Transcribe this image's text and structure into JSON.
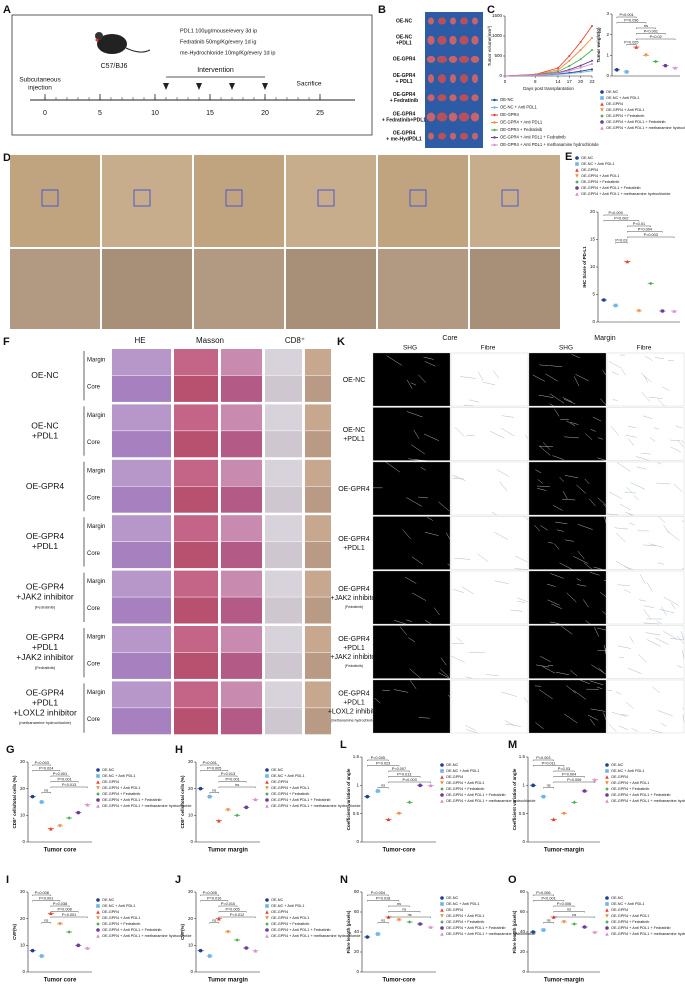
{
  "panel_letters": [
    "A",
    "B",
    "C",
    "D",
    "E",
    "F",
    "K",
    "G",
    "H",
    "L",
    "M",
    "I",
    "J",
    "N",
    "O"
  ],
  "timeline": {
    "mouse": "C57/BJ6",
    "dosing": [
      "PDL1 100μg/mouse/every 3d   ip",
      "Fedratinib 50mg/Kg/every 1d   ig",
      "me-Hydrochloride 10mg/Kg/every 1d   ip"
    ],
    "intervention": "Intervention",
    "start": [
      "Subcutaneous",
      "injection"
    ],
    "end": "Sacrifice",
    "day_ticks": [
      0,
      5,
      10,
      15,
      20,
      25
    ]
  },
  "tumor_rows": [
    [
      "OE-NC"
    ],
    [
      "OE-NC",
      "+PDL1"
    ],
    [
      "OE-GPR4"
    ],
    [
      "OE-GPR4",
      "+ PDL1"
    ],
    [
      "OE-GPR4",
      "+ Fedratinib"
    ],
    [
      "OE-GPR4",
      "+ Fedratinib+PDL1"
    ],
    [
      "OE-GPR4",
      "+ me-HydPDL1"
    ]
  ],
  "groups": {
    "names": [
      "OE-NC",
      "OE-NC + Anti PDL1",
      "OE-GPR4",
      "OE-GPR4 + Anti PDL1",
      "OE-GPR4 + Fedratinib",
      "OE-GPR4 + Anti PDL1 + Fedratinib",
      "OE-GPR4 + Anti PDL1 + methanamine hydrochloride"
    ],
    "colors": [
      "#1f3f8f",
      "#6fb6e6",
      "#e8402f",
      "#f08a3c",
      "#4caf50",
      "#6a3d9a",
      "#d98ccc"
    ]
  },
  "line_chart": {
    "type": "line",
    "y_label": "Tumor volume(mm³)",
    "x_label": "Days post transplantation",
    "x": [
      0,
      8,
      14,
      17,
      20,
      23
    ],
    "xlim": [
      0,
      23
    ],
    "xticks": [
      0,
      8,
      14,
      17,
      20,
      23
    ],
    "ylim": [
      0,
      1500
    ],
    "yticks": [
      0,
      500,
      1000,
      1500
    ],
    "series": [
      {
        "name": "OE-NC",
        "color": "#1f3f8f",
        "values": [
          0,
          20,
          50,
          80,
          120,
          170
        ]
      },
      {
        "name": "OE-NC + Anti PDL1",
        "color": "#6fb6e6",
        "values": [
          0,
          15,
          40,
          60,
          90,
          130
        ]
      },
      {
        "name": "OE-GPR4",
        "color": "#e8402f",
        "values": [
          0,
          40,
          200,
          500,
          850,
          1250
        ]
      },
      {
        "name": "OE-GPR4 + Anti PDL1",
        "color": "#f08a3c",
        "values": [
          0,
          35,
          150,
          380,
          650,
          950
        ]
      },
      {
        "name": "OE-GPR4 + Fedratinib",
        "color": "#4caf50",
        "values": [
          0,
          30,
          110,
          250,
          420,
          650
        ]
      },
      {
        "name": "OE-GPR4 + Anti PDL1 + Fedratinib",
        "color": "#6a3d9a",
        "values": [
          0,
          25,
          80,
          160,
          260,
          380
        ]
      },
      {
        "name": "OE-GPR4 + Anti PDL1 + methanamine hydrochloride",
        "color": "#d98ccc",
        "values": [
          0,
          22,
          70,
          130,
          210,
          300
        ]
      }
    ]
  },
  "dot_charts": [
    {
      "type": "dot",
      "y_label": "Tumor weight(g)",
      "ylim": [
        0,
        3
      ],
      "yticks": [
        0,
        1,
        2,
        3
      ],
      "values": [
        0.3,
        0.2,
        1.4,
        1.0,
        0.7,
        0.5,
        0.4
      ],
      "p_labels": [
        "P<0.001",
        "P=0.036",
        "ns",
        "P<0.001",
        "P=0.02",
        "P=0.025"
      ]
    },
    {
      "type": "dot",
      "y_label": "IHC Score of PD-L1",
      "ylim": [
        0,
        20
      ],
      "yticks": [
        0,
        5,
        10,
        15,
        20
      ],
      "values": [
        4,
        3,
        11,
        2,
        7,
        2,
        2
      ],
      "p_labels": [
        "P=0.009",
        "P=0.002",
        "P=0.01",
        "P=0.004",
        "P=0.003",
        "P=0.03"
      ]
    },
    {
      "type": "dot",
      "y_label": "CD8⁺ cells/total cells (%)",
      "x_label": "Tumor core",
      "ylim": [
        0,
        30
      ],
      "yticks": [
        0,
        10,
        20,
        30
      ],
      "values": [
        17,
        15,
        5,
        6,
        9,
        11,
        14
      ],
      "p_labels": [
        "P=0.003",
        "P=0.024",
        "P<0.001",
        "P=0.001",
        "P=0.013",
        "ns"
      ]
    },
    {
      "type": "dot",
      "y_label": "CD8⁺ cells/total cells (%)",
      "x_label": "Tumor margin",
      "ylim": [
        0,
        30
      ],
      "yticks": [
        0,
        10,
        20,
        30
      ],
      "values": [
        20,
        17,
        8,
        12,
        10,
        13,
        16
      ],
      "p_labels": [
        "P<0.001",
        "P=0.005",
        "P=0.013",
        "P=0.001",
        "ns",
        "ns"
      ]
    },
    {
      "type": "dot",
      "y_label": "Coefficient variation of angle",
      "x_label": "Tumor-core",
      "ylim": [
        0,
        1.5
      ],
      "yticks": [
        0,
        0.5,
        1,
        1.5
      ],
      "values": [
        0.8,
        0.9,
        0.4,
        0.5,
        0.7,
        1.0,
        1.0
      ],
      "p_labels": [
        "P=0.005",
        "P=0.023",
        "P=0.007",
        "P=0.013",
        "P=0.003",
        "ns"
      ]
    },
    {
      "type": "dot",
      "y_label": "Coefficient variation of angle",
      "x_label": "Tumor-margin",
      "ylim": [
        0,
        1.5
      ],
      "yticks": [
        0,
        0.5,
        1,
        1.5
      ],
      "values": [
        1.0,
        0.8,
        0.4,
        0.5,
        0.7,
        0.9,
        1.1
      ],
      "p_labels": [
        "P=0.003",
        "P=0.011",
        "P=0.03",
        "P=0.004",
        "P=0.006",
        "ns"
      ]
    },
    {
      "type": "dot",
      "y_label": "CVF(%)",
      "x_label": "Tumor core",
      "ylim": [
        0,
        30
      ],
      "yticks": [
        0,
        10,
        20,
        30
      ],
      "values": [
        8,
        6,
        22,
        18,
        15,
        10,
        9
      ],
      "p_labels": [
        "P=0.008",
        "P<0.001",
        "P=0.038",
        "P=0.008",
        "P=0.001",
        "ns"
      ]
    },
    {
      "type": "dot",
      "y_label": "CVF(%)",
      "x_label": "Tumor margin",
      "ylim": [
        0,
        30
      ],
      "yticks": [
        0,
        10,
        20,
        30
      ],
      "values": [
        8,
        6,
        20,
        15,
        12,
        9,
        8
      ],
      "p_labels": [
        "P=0.005",
        "P=0.016",
        "P=0.010",
        "P=0.005",
        "P=0.012",
        "ns"
      ]
    },
    {
      "type": "dot",
      "y_label": "Fibre length (pixels)",
      "x_label": "Tumor-core",
      "ylim": [
        0,
        80
      ],
      "yticks": [
        0,
        20,
        40,
        60,
        80
      ],
      "values": [
        35,
        38,
        55,
        52,
        50,
        48,
        45
      ],
      "p_labels": [
        "P=0.004",
        "P=0.018",
        "ns",
        "ns",
        "ns",
        "ns"
      ]
    },
    {
      "type": "dot",
      "y_label": "Fibre length (pixels)",
      "x_label": "Tumor-margin",
      "ylim": [
        0,
        80
      ],
      "yticks": [
        0,
        20,
        40,
        60,
        80
      ],
      "values": [
        40,
        42,
        55,
        50,
        48,
        45,
        40
      ],
      "p_labels": [
        "P=0.006",
        "P<0.001",
        "P=0.006",
        "ns",
        "ns",
        "ns"
      ]
    }
  ],
  "histology": {
    "columns": [
      "HE",
      "Masson",
      "CD8⁺"
    ],
    "sublabels": [
      "Margin",
      "Core"
    ],
    "rows": [
      [
        "OE-NC"
      ],
      [
        "OE-NC",
        "+PDL1"
      ],
      [
        "OE-GPR4"
      ],
      [
        "OE-GPR4",
        "+PDL1"
      ],
      [
        "OE-GPR4",
        "+JAK2 inhibitor",
        "(Fedratinib)"
      ],
      [
        "OE-GPR4",
        "+PDL1",
        "+JAK2 inhibitor",
        "(Fedratinib)"
      ],
      [
        "OE-GPR4",
        "+PDL1",
        "+LOXL2 inhibitor",
        "(methanamine hydrochloride)"
      ]
    ]
  },
  "collagen": {
    "regions": [
      "Core",
      "Margin"
    ],
    "columns": [
      "SHG",
      "Fibre"
    ]
  }
}
